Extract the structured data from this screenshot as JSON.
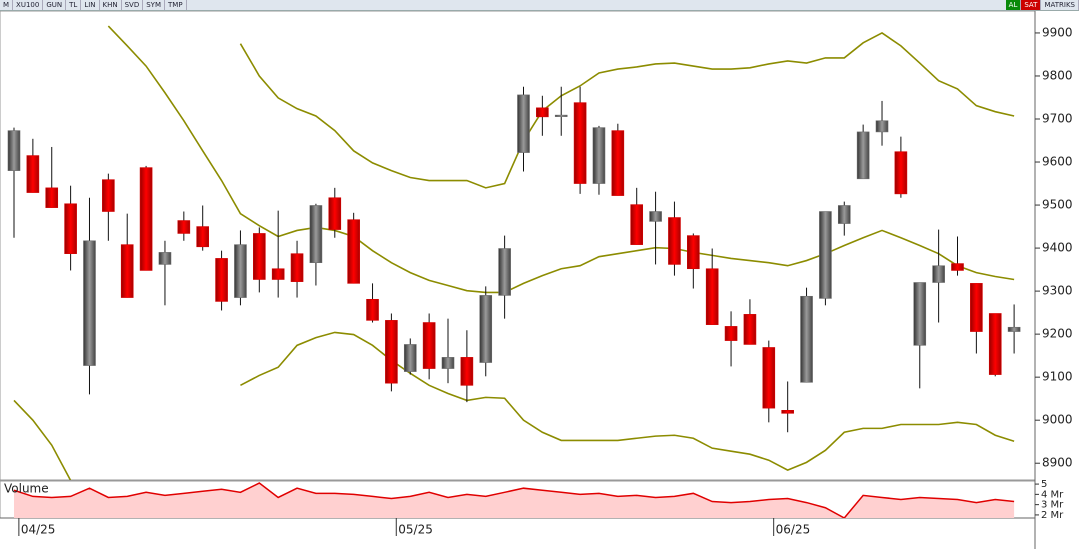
{
  "toolbar": [
    "M",
    "XU100",
    "GUN",
    "TL",
    "LIN",
    "KHN",
    "SVD",
    "SYM",
    "TMP"
  ],
  "toolbar_right": [
    "AL",
    "SAT",
    "MATRIKS"
  ],
  "chart_data": [
    {
      "type": "candlestick",
      "up_color": "#6e6e6e",
      "down_color": "#d60000",
      "grid": false,
      "categories": [
        null,
        "04/25",
        null,
        null,
        null,
        null,
        null,
        null,
        null,
        null,
        null,
        null,
        null,
        null,
        null,
        null,
        null,
        null,
        null,
        null,
        null,
        "05/25",
        null,
        null,
        null,
        null,
        null,
        null,
        null,
        null,
        null,
        null,
        null,
        null,
        null,
        null,
        null,
        null,
        null,
        null,
        null,
        "06/25",
        null,
        null,
        null,
        null,
        null,
        null,
        null,
        null,
        null,
        null,
        null,
        null
      ],
      "open": [
        9580,
        9615,
        9540,
        9503,
        9127,
        9559,
        9408,
        9587,
        9362,
        9464,
        9450,
        9376,
        9285,
        9434,
        9352,
        9387,
        9366,
        9517,
        9466,
        9281,
        9232,
        9113,
        9227,
        9120,
        9146,
        9134,
        9290,
        9622,
        9726,
        9707,
        9738,
        9550,
        9673,
        9501,
        9462,
        9471,
        9429,
        9352,
        9218,
        9246,
        9169,
        9023,
        9088,
        9283,
        9457,
        9561,
        9670,
        9624,
        9174,
        9320,
        9364,
        9318,
        9248,
        9206
      ],
      "high": [
        9680,
        9654,
        9635,
        9545,
        9517,
        9573,
        9480,
        9591,
        9417,
        9485,
        9499,
        9394,
        9441,
        9448,
        9487,
        9417,
        9503,
        9540,
        9482,
        9318,
        9248,
        9190,
        9248,
        9236,
        9209,
        9311,
        9429,
        9775,
        9754,
        9775,
        9775,
        9684,
        9689,
        9540,
        9531,
        9508,
        9434,
        9399,
        9253,
        9281,
        9185,
        9090,
        9308,
        9485,
        9508,
        9687,
        9742,
        9659,
        9320,
        9443,
        9427,
        9318,
        9248,
        9269
      ],
      "low": [
        9424,
        9529,
        9494,
        9348,
        9060,
        9417,
        9285,
        9348,
        9267,
        9417,
        9394,
        9255,
        9267,
        9297,
        9285,
        9285,
        9313,
        9424,
        9318,
        9227,
        9067,
        9106,
        9095,
        9086,
        9042,
        9102,
        9236,
        9578,
        9661,
        9661,
        9526,
        9524,
        9522,
        9408,
        9362,
        9336,
        9306,
        9222,
        9125,
        9176,
        8995,
        8972,
        9088,
        9267,
        9429,
        9561,
        9638,
        9517,
        9074,
        9227,
        9336,
        9155,
        9102,
        9155
      ],
      "close": [
        9673,
        9529,
        9494,
        9387,
        9417,
        9485,
        9285,
        9348,
        9390,
        9434,
        9403,
        9276,
        9408,
        9327,
        9327,
        9322,
        9499,
        9443,
        9318,
        9232,
        9086,
        9176,
        9120,
        9146,
        9081,
        9290,
        9399,
        9756,
        9705,
        9709,
        9550,
        9680,
        9522,
        9408,
        9485,
        9362,
        9352,
        9222,
        9185,
        9176,
        9028,
        9016,
        9288,
        9485,
        9499,
        9670,
        9696,
        9526,
        9320,
        9359,
        9348,
        9206,
        9106,
        9216
      ],
      "series": [
        {
          "color": "#8c8c00",
          "values": [
            null,
            null,
            null,
            null,
            null,
            null,
            null,
            null,
            null,
            null,
            null,
            null,
            9875,
            9800,
            9749,
            9724,
            9707,
            9673,
            9626,
            9598,
            9580,
            9564,
            9557,
            9557,
            9557,
            9540,
            9550,
            9649,
            9719,
            9754,
            9777,
            9807,
            9816,
            9821,
            9828,
            9830,
            9823,
            9816,
            9816,
            9819,
            9828,
            9835,
            9830,
            9842,
            9842,
            9877,
            9900,
            9870,
            9830,
            9789,
            9770,
            9731,
            9717,
            9707
          ]
        },
        {
          "color": "#8c8c00",
          "values": [
            null,
            null,
            null,
            null,
            null,
            9916,
            9870,
            9823,
            9761,
            9696,
            9626,
            9557,
            9480,
            9452,
            9427,
            9441,
            9448,
            9441,
            9427,
            9394,
            9366,
            9343,
            9325,
            9313,
            9301,
            9297,
            9297,
            9318,
            9336,
            9352,
            9359,
            9380,
            9387,
            9394,
            9401,
            9399,
            9390,
            9383,
            9376,
            9371,
            9366,
            9359,
            9371,
            9387,
            9406,
            9424,
            9441,
            9424,
            9406,
            9387,
            9359,
            9343,
            9334,
            9327
          ]
        },
        {
          "color": "#8c8c00",
          "values": [
            9046,
            9000,
            8942,
            8860,
            null,
            null,
            null,
            null,
            null,
            null,
            null,
            null,
            9081,
            9104,
            9123,
            9174,
            9192,
            9204,
            9199,
            9174,
            9139,
            9109,
            9081,
            9062,
            9046,
            9053,
            9051,
            9000,
            8972,
            8953,
            8953,
            8953,
            8953,
            8958,
            8963,
            8965,
            8958,
            8935,
            8928,
            8921,
            8907,
            8884,
            8902,
            8930,
            8972,
            8981,
            8981,
            8990,
            8990,
            8990,
            8995,
            8990,
            8965,
            8951
          ]
        }
      ],
      "ylim": [
        8861,
        9951
      ],
      "yticks": [
        9900,
        9800,
        9700,
        9600,
        9500,
        9400,
        9300,
        9200,
        9100,
        9000,
        8900
      ]
    },
    {
      "type": "area",
      "title": "Volume",
      "color": "#e00000",
      "fill": "#ffd0d0",
      "values": [
        4.4,
        3.8,
        3.7,
        3.8,
        4.6,
        3.7,
        3.8,
        4.2,
        3.9,
        4.1,
        4.3,
        4.5,
        4.2,
        5.1,
        3.7,
        4.6,
        4.1,
        4.1,
        4.0,
        3.8,
        3.6,
        3.8,
        4.2,
        3.7,
        4.0,
        3.8,
        4.2,
        4.6,
        4.4,
        4.2,
        4.0,
        4.1,
        3.8,
        3.9,
        3.7,
        3.8,
        4.1,
        3.3,
        3.2,
        3.3,
        3.5,
        3.6,
        3.2,
        2.7,
        1.7,
        3.9,
        3.7,
        3.5,
        3.7,
        3.6,
        3.5,
        3.2,
        3.5,
        3.3
      ],
      "ylim": [
        1.7,
        5.3
      ],
      "yticks": [
        5,
        {
          "value": 4,
          "label": "4 Mr"
        },
        {
          "value": 3,
          "label": "3 Mr"
        },
        {
          "value": 2,
          "label": "2 Mr"
        }
      ]
    }
  ]
}
